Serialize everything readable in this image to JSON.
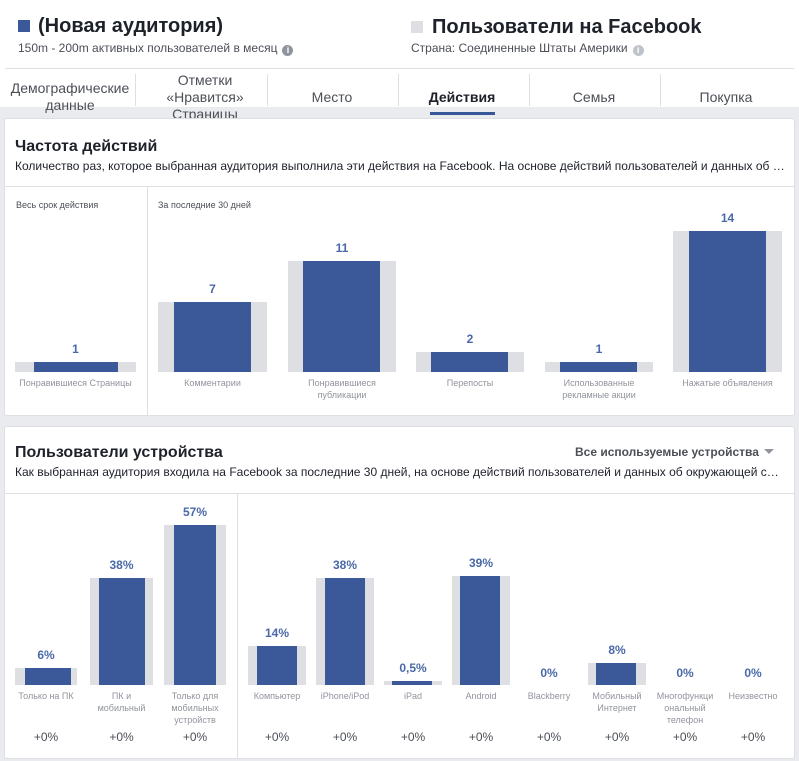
{
  "audience": {
    "title": "(Новая аудитория)",
    "subtitle": "150m - 200m активных пользователей в месяц",
    "color": "#3b5998"
  },
  "comparison": {
    "title": "Пользователи на Facebook",
    "subtitle": "Страна: Соединенные Штаты Америки",
    "color": "#dddfe2"
  },
  "tabs": [
    {
      "label": "Демографические данные",
      "active": false
    },
    {
      "label": "Отметки «Нравится» Страницы",
      "active": false
    },
    {
      "label": "Место",
      "active": false
    },
    {
      "label": "Действия",
      "active": true
    },
    {
      "label": "Семья",
      "active": false
    },
    {
      "label": "Покупка",
      "active": false
    }
  ],
  "activity": {
    "title": "Частота действий",
    "description": "Количество раз, которое выбранная аудитория выполнила эти действия на Facebook. На основе действий пользователей и данных об окружающей среде.",
    "left_label": "Весь срок действия",
    "right_label": "За последние 30 дней",
    "chart_data": {
      "type": "bar",
      "categories": [
        "Понравившиеся Страницы",
        "Комментарии",
        "Понравившиеся публикации",
        "Перепосты",
        "Использованные рекламные акции",
        "Нажатые объявления"
      ],
      "series": [
        {
          "name": "(Новая аудитория)",
          "values": [
            1,
            7,
            11,
            2,
            1,
            14
          ]
        }
      ],
      "value_labels": [
        "1",
        "7",
        "11",
        "2",
        "1",
        "14"
      ],
      "groups": [
        "Весь срок действия",
        "За последние 30 дней",
        "За последние 30 дней",
        "За последние 30 дней",
        "За последние 30 дней",
        "За последние 30 дней"
      ]
    }
  },
  "devices": {
    "title": "Пользователи устройства",
    "description": "Как выбранная аудитория входила на Facebook за последние 30 дней, на основе действий пользователей и данных об окружающей среде.",
    "dropdown": "Все используемые устройства",
    "chart_data": {
      "type": "bar",
      "categories": [
        "Только на ПК",
        "ПК и мобильный",
        "Только для мобильных устройств",
        "Компьютер",
        "iPhone/iPod",
        "iPad",
        "Android",
        "Blackberry",
        "Мобильный Интернет",
        "Многофункциональный телефон",
        "Неизвестно"
      ],
      "series": [
        {
          "name": "(Новая аудитория)",
          "values": [
            6,
            38,
            57,
            14,
            38,
            0.5,
            39,
            0,
            8,
            0,
            0
          ]
        }
      ],
      "value_labels": [
        "6%",
        "38%",
        "57%",
        "14%",
        "38%",
        "0,5%",
        "39%",
        "0%",
        "8%",
        "0%",
        "0%"
      ],
      "deltas": [
        "+0%",
        "+0%",
        "+0%",
        "+0%",
        "+0%",
        "+0%",
        "+0%",
        "+0%",
        "+0%",
        "+0%",
        "+0%"
      ],
      "label_lines": [
        [
          "Только на ПК"
        ],
        [
          "ПК и",
          "мобильный"
        ],
        [
          "Только для",
          "мобильных",
          "устройств"
        ],
        [
          "Компьютер"
        ],
        [
          "iPhone/iPod"
        ],
        [
          "iPad"
        ],
        [
          "Android"
        ],
        [
          "Blackberry"
        ],
        [
          "Мобильный",
          "Интернет"
        ],
        [
          "Многофункци",
          "ональный",
          "телефон"
        ],
        [
          "Неизвестно"
        ]
      ]
    }
  }
}
